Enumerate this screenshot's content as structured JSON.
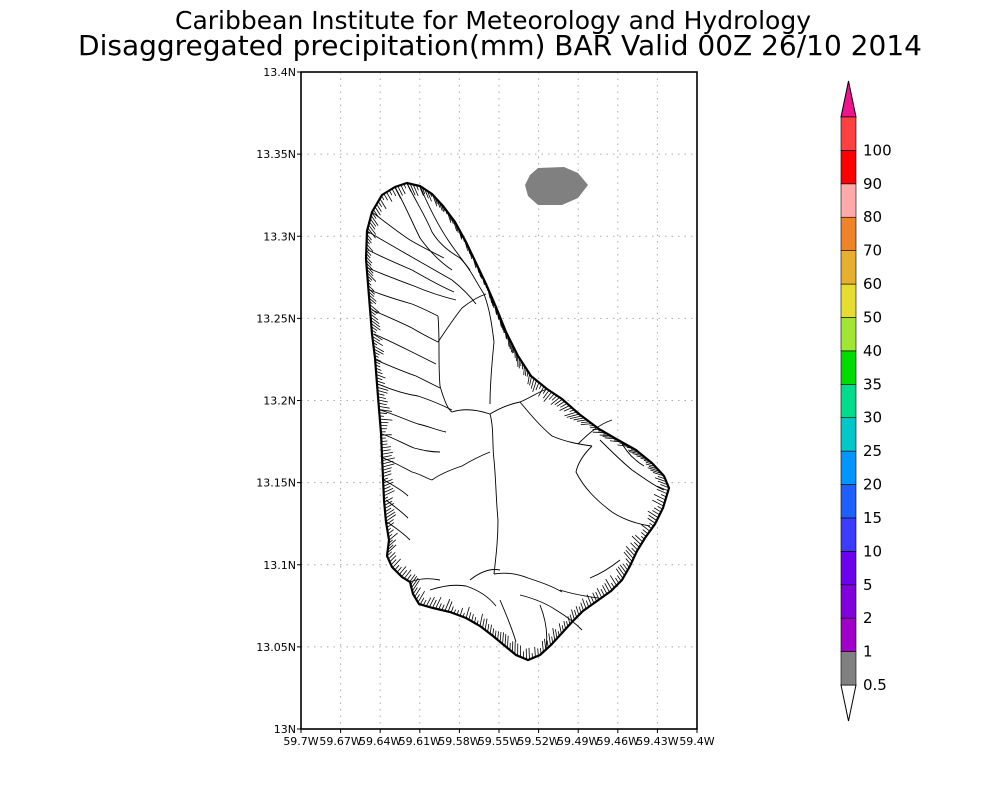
{
  "title": {
    "line1": "Caribbean Institute for Meteorology and Hydrology",
    "line2": "Disaggregated precipitation(mm) BAR Valid 00Z 26/10 2014"
  },
  "map": {
    "lat_ticks": [
      "13.4N",
      "13.35N",
      "13.3N",
      "13.25N",
      "13.2N",
      "13.15N",
      "13.1N",
      "13.05N",
      "13N"
    ],
    "lon_ticks": [
      "59.7W",
      "59.67W",
      "59.64W",
      "59.61W",
      "59.58W",
      "59.55W",
      "59.52W",
      "59.49W",
      "59.46W",
      "59.43W",
      "59.4W"
    ],
    "lat_range": [
      13.0,
      13.4
    ],
    "lon_range": [
      -59.7,
      -59.4
    ],
    "grid": true,
    "precip_cell": {
      "value_range": "0.5-1",
      "color": "#808080",
      "center_lat": 13.33,
      "center_lon": -59.51
    }
  },
  "colorbar": {
    "labels": [
      "0.5",
      "1",
      "2",
      "5",
      "10",
      "15",
      "20",
      "25",
      "30",
      "35",
      "40",
      "50",
      "60",
      "70",
      "80",
      "90",
      "100"
    ],
    "colors": [
      "#808080",
      "#a000c8",
      "#8200dc",
      "#6e00f0",
      "#3c3cff",
      "#1e60ff",
      "#0096ff",
      "#00c8c8",
      "#00dc8c",
      "#00dc00",
      "#a0e632",
      "#e6dc32",
      "#e6af2d",
      "#f08228",
      "#ffaaaa",
      "#ff0000",
      "#ff4040"
    ],
    "over_color": "#f0148c",
    "under_color": "#ffffff"
  }
}
